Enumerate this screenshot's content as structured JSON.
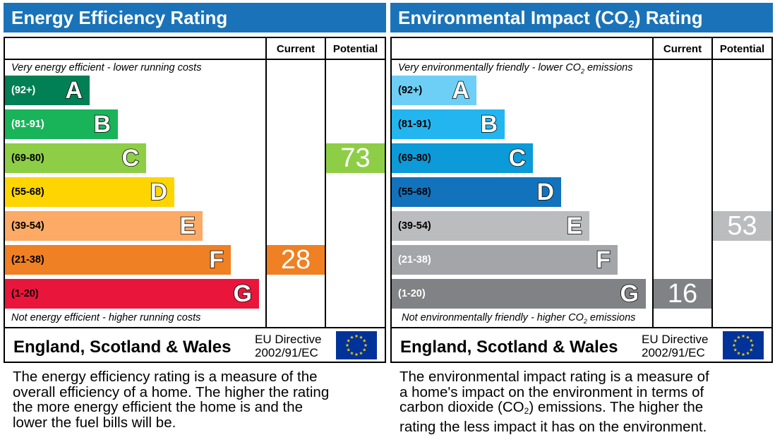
{
  "chart_data": [
    {
      "type": "bar",
      "title": "Energy Efficiency Rating",
      "columns": [
        "Current",
        "Potential"
      ],
      "top_note": "Very energy efficient - lower running costs",
      "bottom_note": "Not energy efficient - higher running costs",
      "bands": [
        {
          "letter": "A",
          "range": "(92+)",
          "color": "#008054",
          "text_color": "#ffffff"
        },
        {
          "letter": "B",
          "range": "(81-91)",
          "color": "#19b459",
          "text_color": "#ffffff"
        },
        {
          "letter": "C",
          "range": "(69-80)",
          "color": "#8dce46",
          "text_color": "#000000"
        },
        {
          "letter": "D",
          "range": "(55-68)",
          "color": "#ffd500",
          "text_color": "#000000"
        },
        {
          "letter": "E",
          "range": "(39-54)",
          "color": "#fcaa65",
          "text_color": "#000000"
        },
        {
          "letter": "F",
          "range": "(21-38)",
          "color": "#ef8023",
          "text_color": "#000000"
        },
        {
          "letter": "G",
          "range": "(1-20)",
          "color": "#e9153b",
          "text_color": "#000000"
        }
      ],
      "current": {
        "value": "28",
        "band": "F",
        "color": "#ef8023"
      },
      "potential": {
        "value": "73",
        "band": "C",
        "color": "#8dce46"
      },
      "footer_region": "England, Scotland & Wales",
      "footer_directive": [
        "EU Directive",
        "2002/91/EC"
      ],
      "description": [
        "The energy efficiency rating is a measure of the",
        "overall efficiency of a home. The higher the rating",
        "the more energy efficient the home is and the",
        "lower the fuel bills will be."
      ]
    },
    {
      "type": "bar",
      "title_parts": [
        "Environmental Impact (CO",
        "2",
        ") Rating"
      ],
      "columns": [
        "Current",
        "Potential"
      ],
      "top_note_parts": [
        "Very environmentally friendly - lower CO",
        "2",
        " emissions"
      ],
      "bottom_note_parts": [
        "Not environmentally friendly - higher CO",
        "2",
        " emissions"
      ],
      "bands": [
        {
          "letter": "A",
          "range": "(92+)",
          "color": "#6ecff6",
          "text_color": "#000000"
        },
        {
          "letter": "B",
          "range": "(81-91)",
          "color": "#23b5f0",
          "text_color": "#000000"
        },
        {
          "letter": "C",
          "range": "(69-80)",
          "color": "#0c9ad8",
          "text_color": "#000000"
        },
        {
          "letter": "D",
          "range": "(55-68)",
          "color": "#1273bc",
          "text_color": "#000000"
        },
        {
          "letter": "E",
          "range": "(39-54)",
          "color": "#bbbcbe",
          "text_color": "#000000"
        },
        {
          "letter": "F",
          "range": "(21-38)",
          "color": "#a3a5a8",
          "text_color": "#ffffff"
        },
        {
          "letter": "G",
          "range": "(1-20)",
          "color": "#808285",
          "text_color": "#ffffff"
        }
      ],
      "current": {
        "value": "16",
        "band": "G",
        "color": "#808285"
      },
      "potential": {
        "value": "53",
        "band": "E",
        "color": "#bbbcbe"
      },
      "footer_region": "England, Scotland & Wales",
      "footer_directive": [
        "EU Directive",
        "2002/91/EC"
      ],
      "description_parts": [
        "The environmental impact rating is a measure of",
        "a home's impact on the environment in terms of",
        "carbon dioxide (CO",
        "2",
        ") emissions. The higher the",
        "rating the less impact it has on the environment."
      ]
    }
  ],
  "icons": {
    "flag": "eu-flag-icon",
    "flag_color": "#003399",
    "star_color": "#ffcc00"
  }
}
